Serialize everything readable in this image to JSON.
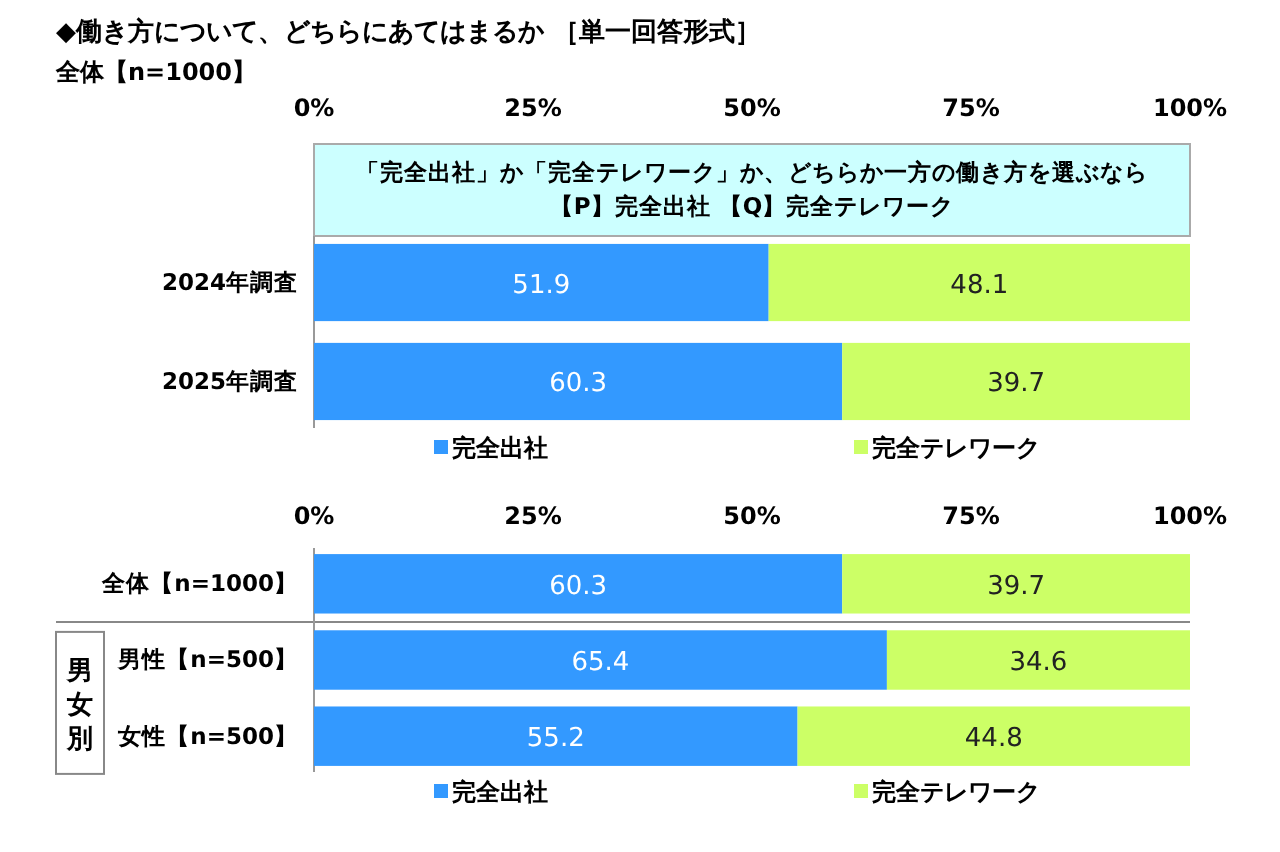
{
  "chart_data": [
    {
      "type": "bar",
      "orientation": "horizontal",
      "stacked": true,
      "title": "◆働き方について、どちらにあてはまるか ［単一回答形式］",
      "subtitle": "全体【n=1000】",
      "annotations": [
        "「完全出社」か「完全テレワーク」か、どちらか一方の働き方を選ぶなら",
        "【P】完全出社 【Q】完全テレワーク"
      ],
      "categories": [
        "2024年調査",
        "2025年調査"
      ],
      "series": [
        {
          "name": "完全出社",
          "color": "#3399ff",
          "values": [
            51.9,
            60.3
          ]
        },
        {
          "name": "完全テレワーク",
          "color": "#ccff66",
          "values": [
            48.1,
            39.7
          ]
        }
      ],
      "xlim": [
        0,
        100
      ],
      "xticks": [
        {
          "value": 0,
          "label": "0%"
        },
        {
          "value": 25,
          "label": "25%"
        },
        {
          "value": 50,
          "label": "50%"
        },
        {
          "value": 75,
          "label": "75%"
        },
        {
          "value": 100,
          "label": "100%"
        }
      ],
      "data_labels": true,
      "legend": "bottom",
      "grid": false
    },
    {
      "type": "bar",
      "orientation": "horizontal",
      "stacked": true,
      "annotations": [
        "男女別"
      ],
      "categories": [
        "全体【n=1000】",
        "男性【n=500】",
        "女性【n=500】"
      ],
      "series": [
        {
          "name": "完全出社",
          "color": "#3399ff",
          "values": [
            60.3,
            65.4,
            55.2
          ]
        },
        {
          "name": "完全テレワーク",
          "color": "#ccff66",
          "values": [
            39.7,
            34.6,
            44.8
          ]
        }
      ],
      "xlim": [
        0,
        100
      ],
      "xticks": [
        {
          "value": 0,
          "label": "0%"
        },
        {
          "value": 25,
          "label": "25%"
        },
        {
          "value": 50,
          "label": "50%"
        },
        {
          "value": 75,
          "label": "75%"
        },
        {
          "value": 100,
          "label": "100%"
        }
      ],
      "data_labels": true,
      "legend": "bottom",
      "grid": false
    }
  ]
}
